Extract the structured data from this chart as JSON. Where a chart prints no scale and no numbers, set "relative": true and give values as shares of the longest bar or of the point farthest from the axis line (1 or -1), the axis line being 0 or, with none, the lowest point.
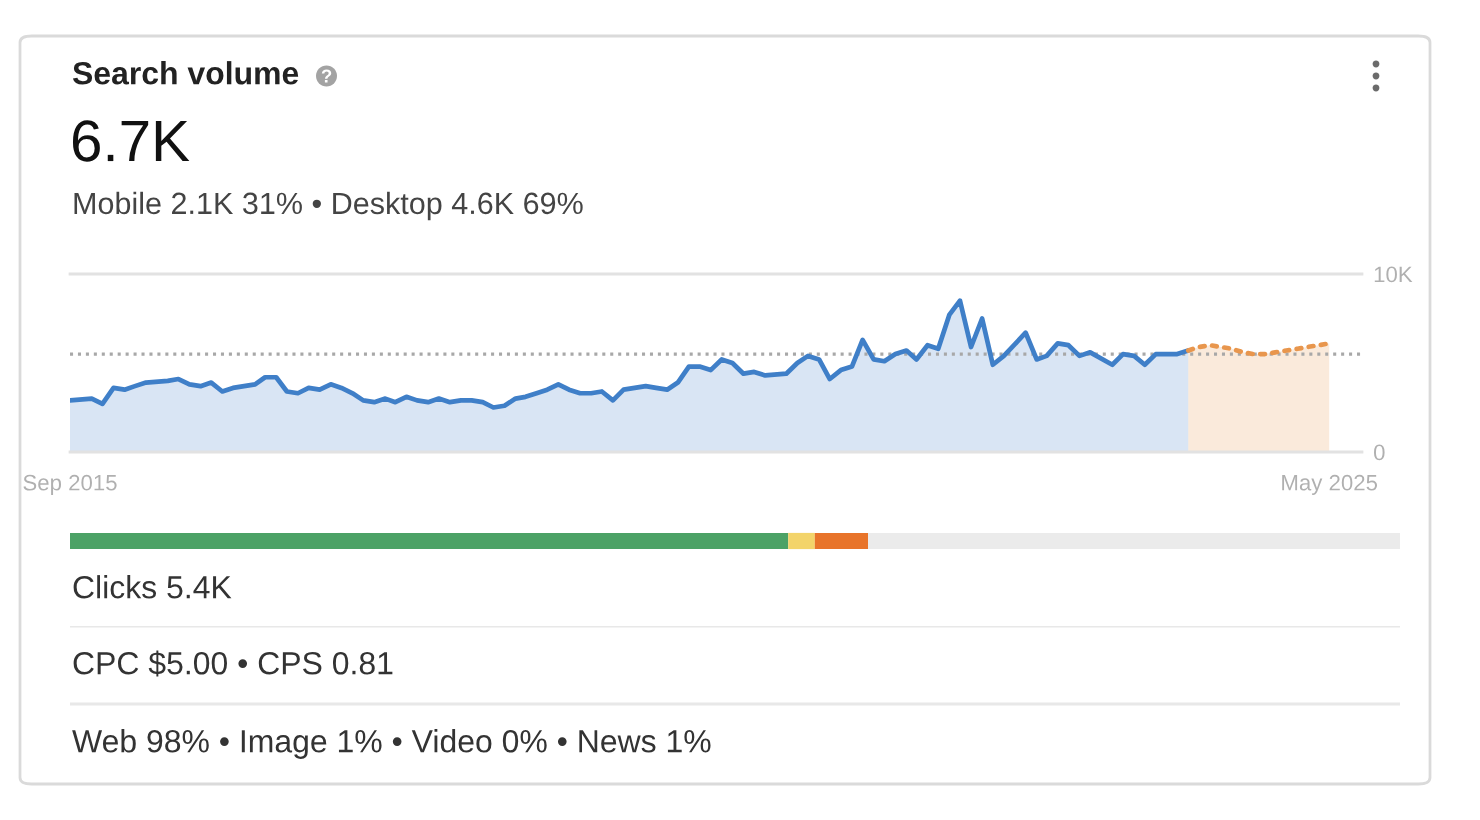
{
  "chart_data": [
    {
      "type": "area",
      "title": "Search volume",
      "subtitle": "6.7K",
      "annotations": [
        "Mobile 2.1K 31% • Desktop 4.6K 69%"
      ],
      "series": [
        {
          "color": "#3f7fc8",
          "x": [
            "2015-09",
            "2015-11",
            "2015-12",
            "2016-01",
            "2016-02",
            "2016-03",
            "2016-04",
            "2016-06",
            "2016-07",
            "2016-08",
            "2016-09",
            "2016-10",
            "2016-11",
            "2016-12",
            "2017-01",
            "2017-02",
            "2017-03",
            "2017-04",
            "2017-05",
            "2017-06",
            "2017-07",
            "2017-08",
            "2017-09",
            "2017-10",
            "2017-11",
            "2017-12",
            "2018-01",
            "2018-02",
            "2018-03",
            "2018-04",
            "2018-05",
            "2018-06",
            "2018-07",
            "2018-08",
            "2018-09",
            "2018-10",
            "2018-11",
            "2018-12",
            "2019-01",
            "2019-02",
            "2019-03",
            "2019-04",
            "2019-05",
            "2019-06",
            "2019-07",
            "2019-08",
            "2019-09",
            "2019-10",
            "2019-11",
            "2019-12",
            "2020-01",
            "2020-02",
            "2020-03",
            "2020-04",
            "2020-05",
            "2020-06",
            "2020-07",
            "2020-08",
            "2020-09",
            "2020-10",
            "2020-11",
            "2020-12",
            "2021-01",
            "2021-03",
            "2021-04",
            "2021-05",
            "2021-06",
            "2021-07",
            "2021-08",
            "2021-09",
            "2021-10",
            "2021-11",
            "2021-12",
            "2022-01",
            "2022-02",
            "2022-03",
            "2022-04",
            "2022-05",
            "2022-06",
            "2022-07",
            "2022-08",
            "2022-09",
            "2022-10",
            "2022-11",
            "2023-01",
            "2023-02",
            "2023-03",
            "2023-04",
            "2023-05",
            "2023-06",
            "2023-07",
            "2023-09",
            "2023-10",
            "2023-11",
            "2023-12",
            "2024-01",
            "2024-03",
            "2024-04"
          ],
          "values": [
            2900,
            3000,
            2700,
            3600,
            3500,
            3700,
            3900,
            4000,
            4100,
            3800,
            3700,
            3900,
            3400,
            3600,
            3700,
            3800,
            4200,
            4200,
            3400,
            3300,
            3600,
            3500,
            3800,
            3600,
            3300,
            2900,
            2800,
            3000,
            2800,
            3100,
            2900,
            2800,
            3000,
            2800,
            2900,
            2900,
            2800,
            2500,
            2600,
            3000,
            3100,
            3300,
            3500,
            3800,
            3500,
            3300,
            3300,
            3400,
            2900,
            3500,
            3600,
            3700,
            3600,
            3500,
            3900,
            4800,
            4800,
            4600,
            5200,
            5000,
            4400,
            4500,
            4300,
            4400,
            5000,
            5400,
            5200,
            4100,
            4600,
            4800,
            6300,
            5200,
            5100,
            5500,
            5700,
            5200,
            6000,
            5800,
            7700,
            8500,
            5900,
            7500,
            4900,
            5400,
            6700,
            5200,
            5400,
            6100,
            6000,
            5400,
            5600,
            4900,
            5500,
            5400,
            4900,
            5500,
            5500,
            5700
          ]
        },
        {
          "color": "#e8964d",
          "line_style": "dotted",
          "x": [
            "2024-04",
            "2024-05",
            "2024-06",
            "2024-07",
            "2024-08",
            "2024-09",
            "2024-10",
            "2024-11",
            "2024-12",
            "2025-01",
            "2025-02",
            "2025-03",
            "2025-04",
            "2025-05"
          ],
          "values": [
            5700,
            5900,
            6000,
            5900,
            5800,
            5600,
            5500,
            5500,
            5600,
            5700,
            5800,
            5900,
            6000,
            6100
          ]
        }
      ],
      "xlim": [
        "2015-09",
        "2025-08"
      ],
      "xticks": [
        {
          "value": "2015-09",
          "label": "Sep 2015"
        },
        {
          "value": "2025-05",
          "label": "May 2025"
        }
      ],
      "ylim": [
        0,
        10000
      ],
      "yticks": [
        0,
        {
          "value": 10000,
          "label": "10K"
        }
      ],
      "ref_lines": [
        {
          "axis": "y",
          "value": 5500,
          "color": "#a8a8a8",
          "line_style": "dotted"
        }
      ]
    },
    {
      "type": "bar",
      "orientation": "horizontal",
      "stacked": true,
      "relative": true,
      "categories": [
        null
      ],
      "series": [
        {
          "color": "#4ca266",
          "values": [
            0.54
          ]
        },
        {
          "color": "#f3d46a",
          "values": [
            0.02
          ]
        },
        {
          "color": "#e8742a",
          "values": [
            0.04
          ]
        },
        {
          "color": "#ebebeb",
          "values": [
            0.4
          ]
        }
      ],
      "annotations": [
        "Clicks 5.4K"
      ]
    },
    {
      "type": "other",
      "annotations": [
        "CPC $5.00 • CPS 0.81",
        "Web 98% • Image 1% • Video 0% • News 1%"
      ]
    }
  ]
}
